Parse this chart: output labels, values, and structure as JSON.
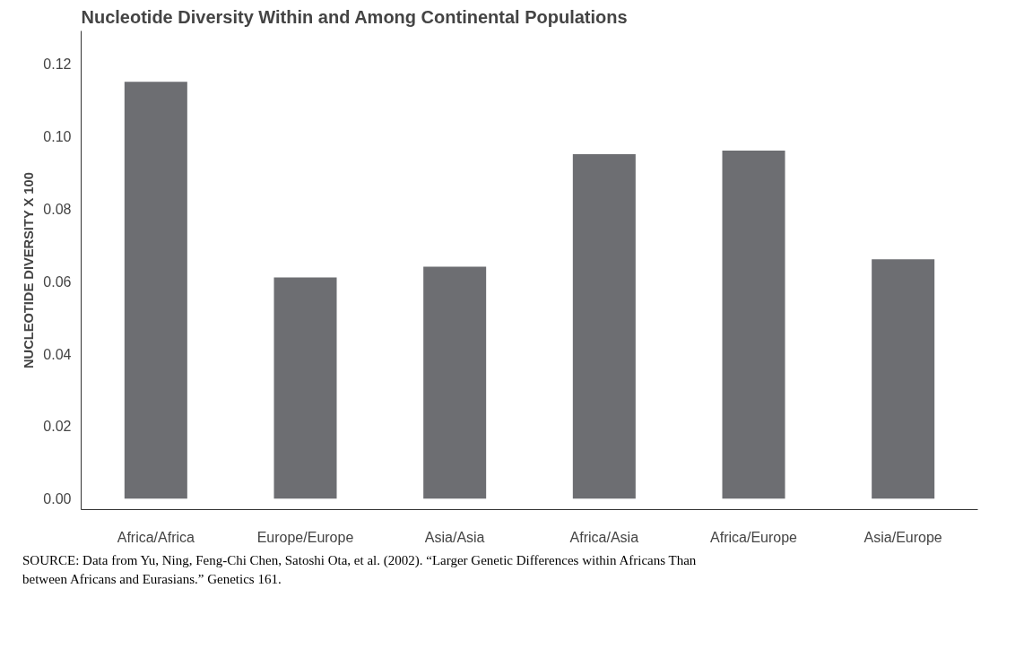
{
  "chart_data": {
    "type": "bar",
    "title": "Nucleotide Diversity Within and Among Continental Populations",
    "ylabel": "NUCLEOTIDE DIVERSITY X 100",
    "categories": [
      "Africa/Africa",
      "Europe/Europe",
      "Asia/Asia",
      "Africa/Asia",
      "Africa/Europe",
      "Asia/Europe"
    ],
    "values": [
      0.115,
      0.061,
      0.064,
      0.095,
      0.096,
      0.066
    ],
    "color": "#6d6e72",
    "ylim": [
      -0.003,
      0.129
    ],
    "yticks": [
      {
        "value": 0,
        "label": "0.00"
      },
      {
        "value": 0.02,
        "label": "0.02"
      },
      {
        "value": 0.04,
        "label": "0.04"
      },
      {
        "value": 0.06,
        "label": "0.06"
      },
      {
        "value": 0.08,
        "label": "0.08"
      },
      {
        "value": 0.1,
        "label": "0.10"
      },
      {
        "value": 0.12,
        "label": "0.12"
      }
    ],
    "grid": false,
    "annotations": [
      "SOURCE: Data from Yu, Ning, Feng-Chi Chen, Satoshi Ota, et al. (2002). “Larger Genetic Differences within Africans Than between Africans and Eurasians.” Genetics 161."
    ]
  }
}
